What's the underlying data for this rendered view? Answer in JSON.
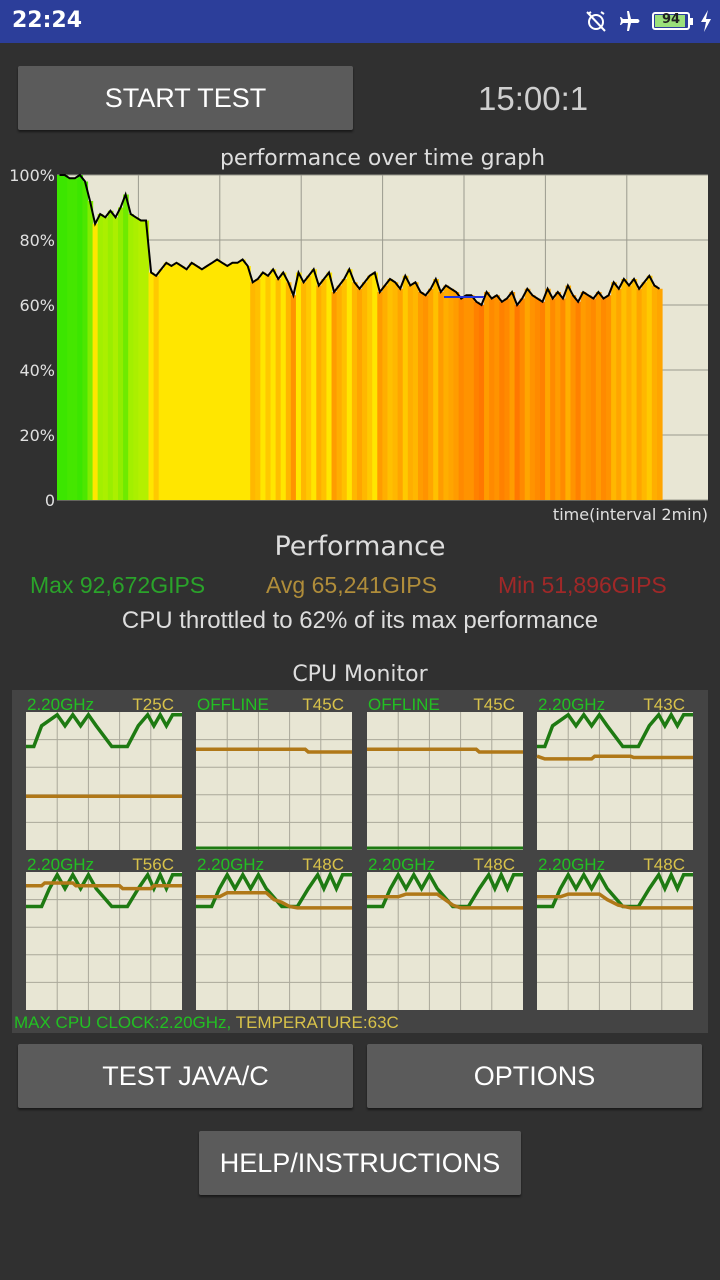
{
  "status_bar": {
    "time": "22:24",
    "battery_level": "94",
    "icons": [
      "alarm-off-icon",
      "airplane-icon",
      "battery-icon",
      "charging-icon"
    ]
  },
  "buttons": {
    "start_test": "START TEST",
    "test_java": "TEST JAVA/C",
    "options": "OPTIONS",
    "help": "HELP/INSTRUCTIONS"
  },
  "timer": "15:00:1",
  "graph": {
    "title": "performance over time graph",
    "x_label": "time(interval 2min)",
    "y_ticks": [
      "100%",
      "80%",
      "60%",
      "40%",
      "20%",
      "0"
    ]
  },
  "chart_data": {
    "type": "area",
    "title": "performance over time graph",
    "xlabel": "time(interval 2min)",
    "ylabel": "",
    "ylim": [
      0,
      100
    ],
    "y_ticks": [
      0,
      20,
      40,
      60,
      80,
      100
    ],
    "series": [
      {
        "values": [
          100,
          100,
          99,
          99,
          100,
          98,
          92,
          85,
          88,
          87,
          89,
          87,
          90,
          94,
          88,
          87,
          86,
          86,
          70,
          69,
          71,
          73,
          72,
          73,
          72,
          71,
          73,
          72,
          71,
          72,
          73,
          74,
          73,
          72,
          73,
          73,
          74,
          72,
          67,
          68,
          70,
          69,
          71,
          68,
          70,
          67,
          63,
          70,
          67,
          69,
          71,
          66,
          68,
          70,
          64,
          66,
          68,
          71,
          67,
          65,
          67,
          69,
          70,
          64,
          66,
          68,
          67,
          65,
          69,
          66,
          67,
          64,
          63,
          65,
          68,
          64,
          66,
          65,
          64,
          62,
          63,
          63,
          61,
          60,
          64,
          62,
          63,
          61,
          62,
          64,
          60,
          62,
          65,
          63,
          62,
          61,
          65,
          62,
          64,
          62,
          66,
          63,
          61,
          64,
          63,
          62,
          64,
          62,
          63,
          67,
          65,
          68,
          66,
          68,
          65,
          67,
          69,
          66,
          65
        ]
      }
    ]
  },
  "performance": {
    "heading": "Performance",
    "max": "Max 92,672GIPS",
    "avg": "Avg 65,241GIPS",
    "min": "Min 51,896GIPS",
    "throttle": "CPU throttled to 62% of its max performance"
  },
  "cpu_monitor": {
    "title": "CPU Monitor",
    "cores": [
      {
        "freq": "2.20GHz",
        "temp": "T25C"
      },
      {
        "freq": "OFFLINE",
        "temp": "T45C"
      },
      {
        "freq": "OFFLINE",
        "temp": "T45C"
      },
      {
        "freq": "2.20GHz",
        "temp": "T43C"
      },
      {
        "freq": "2.20GHz",
        "temp": "T56C"
      },
      {
        "freq": "2.20GHz",
        "temp": "T48C"
      },
      {
        "freq": "2.20GHz",
        "temp": "T48C"
      },
      {
        "freq": "2.20GHz",
        "temp": "T48C"
      }
    ],
    "max_clock": "MAX CPU CLOCK:2.20GHz,",
    "temperature": "TEMPERATURE:63C"
  },
  "colors": {
    "status_bar": "#2c3e9a",
    "background": "#303030",
    "button": "#5b5b5b",
    "graph_bg": "#e8e6d4",
    "max_text": "#2aa32a",
    "avg_text": "#b08d3a",
    "min_text": "#a02828",
    "freq_line": "#1e7a12",
    "temp_line": "#b07818",
    "freq_label": "#22c022",
    "temp_label": "#d8c24a"
  }
}
